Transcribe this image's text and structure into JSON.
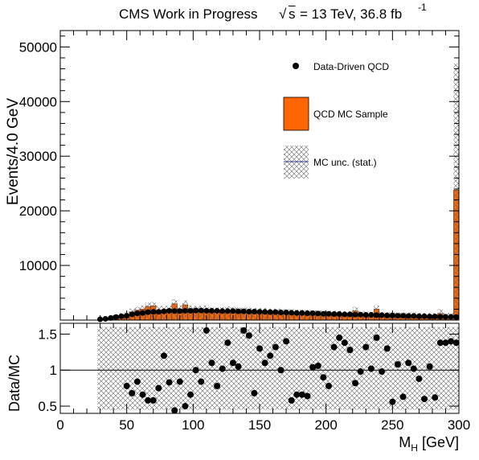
{
  "header": {
    "experiment": "CMS Work in Progress",
    "sqrt_symbol": "√",
    "s_label": "s",
    "energy_lumi": "= 13 TeV, 36.8 fb",
    "lumi_exponent": "-1"
  },
  "chart_data": [
    {
      "type": "bar",
      "panel": "main",
      "ylabel": "Events/4.0 GeV",
      "xlim": [
        0,
        300
      ],
      "ylim": [
        0,
        53000
      ],
      "xticks_label": false,
      "yticks": [
        10000,
        20000,
        30000,
        40000,
        50000
      ],
      "ytick_labels": [
        "10000",
        "20000",
        "30000",
        "40000",
        "50000"
      ],
      "legend": [
        {
          "label": "Data-Driven QCD",
          "marker": "dot"
        },
        {
          "label": "QCD MC Sample",
          "marker": "orange-box"
        },
        {
          "label": "MC unc. (stat.)",
          "marker": "hatched-box"
        }
      ],
      "bin_width": 4,
      "x_bin_centers": [
        2,
        6,
        10,
        14,
        18,
        22,
        26,
        30,
        34,
        38,
        42,
        46,
        50,
        54,
        58,
        62,
        66,
        70,
        74,
        78,
        82,
        86,
        90,
        94,
        98,
        102,
        106,
        110,
        114,
        118,
        122,
        126,
        130,
        134,
        138,
        142,
        146,
        150,
        154,
        158,
        162,
        166,
        170,
        174,
        178,
        182,
        186,
        190,
        194,
        198,
        202,
        206,
        210,
        214,
        218,
        222,
        226,
        230,
        234,
        238,
        242,
        246,
        250,
        254,
        258,
        262,
        266,
        270,
        274,
        278,
        282,
        286,
        290,
        294,
        298
      ],
      "series": [
        {
          "name": "QCD MC Sample",
          "color": "#ff6600",
          "values": [
            0,
            0,
            0,
            0,
            0,
            0,
            0,
            150,
            250,
            400,
            600,
            800,
            1000,
            1500,
            1800,
            2000,
            2500,
            2600,
            1800,
            1900,
            2000,
            3000,
            2000,
            2800,
            2000,
            1800,
            1900,
            2000,
            1700,
            1600,
            1700,
            1800,
            1700,
            1600,
            1600,
            1600,
            1500,
            1500,
            1500,
            1400,
            1400,
            1400,
            1300,
            1300,
            1200,
            1200,
            1200,
            1100,
            1100,
            1100,
            1000,
            1000,
            1000,
            950,
            950,
            1700,
            900,
            900,
            850,
            2000,
            800,
            800,
            750,
            750,
            700,
            700,
            700,
            650,
            650,
            650,
            600,
            1200,
            600,
            600,
            23800
          ]
        },
        {
          "name": "Data-Driven QCD",
          "color": "#000000",
          "values": [
            0,
            0,
            0,
            0,
            0,
            0,
            0,
            140,
            230,
            380,
            560,
            700,
            800,
            1050,
            1230,
            1300,
            1450,
            1500,
            1500,
            1600,
            1700,
            1650,
            1650,
            1700,
            1700,
            1750,
            1750,
            1700,
            1700,
            1700,
            1650,
            1650,
            1650,
            1600,
            1600,
            1550,
            1550,
            1500,
            1500,
            1450,
            1450,
            1400,
            1400,
            1350,
            1300,
            1300,
            1250,
            1250,
            1200,
            1150,
            1150,
            1100,
            1100,
            1050,
            1050,
            1000,
            1000,
            950,
            950,
            900,
            900,
            850,
            850,
            800,
            800,
            750,
            750,
            700,
            700,
            650,
            650,
            600,
            600,
            600,
            550
          ]
        }
      ],
      "mc_unc_upper": [
        0,
        0,
        0,
        0,
        0,
        0,
        0,
        300,
        450,
        700,
        1000,
        1300,
        1500,
        2100,
        2400,
        2700,
        3200,
        3300,
        2600,
        2600,
        2700,
        3800,
        2700,
        3600,
        2700,
        2600,
        2600,
        2700,
        2400,
        2300,
        2400,
        2500,
        2400,
        2300,
        2300,
        2300,
        2200,
        2200,
        2200,
        2100,
        2100,
        2100,
        2000,
        2000,
        1900,
        1900,
        1900,
        1800,
        1800,
        1800,
        1700,
        1700,
        1700,
        1600,
        1600,
        2400,
        1600,
        1600,
        1500,
        2700,
        1500,
        1500,
        1400,
        1400,
        1400,
        1400,
        1400,
        1300,
        1300,
        1300,
        1300,
        2000,
        1300,
        1300,
        47000
      ],
      "xlabel_visible": false
    },
    {
      "type": "scatter",
      "panel": "ratio",
      "ylabel": "Data/MC",
      "xlabel_main": "M",
      "xlabel_sub": "H",
      "xlabel_unit": " [GeV]",
      "xlim": [
        0,
        300
      ],
      "ylim": [
        0.4,
        1.65
      ],
      "reference_line": 1,
      "xticks": [
        0,
        50,
        100,
        150,
        200,
        250,
        300
      ],
      "xtick_labels": [
        "0",
        "50",
        "100",
        "150",
        "200",
        "250",
        "300"
      ],
      "yticks": [
        0.5,
        1,
        1.5
      ],
      "ytick_labels": [
        "0.5",
        "1",
        "1.5"
      ],
      "unc_band_x_start": 28,
      "unc_band_lower": 0.45,
      "unc_band_upper": 1.6,
      "x": [
        50,
        54,
        58,
        62,
        66,
        70,
        74,
        78,
        82,
        86,
        90,
        94,
        98,
        102,
        106,
        110,
        114,
        118,
        122,
        126,
        130,
        134,
        138,
        142,
        146,
        150,
        154,
        158,
        162,
        166,
        170,
        174,
        178,
        182,
        186,
        190,
        194,
        198,
        202,
        206,
        210,
        214,
        218,
        222,
        226,
        230,
        234,
        238,
        242,
        246,
        250,
        254,
        258,
        262,
        266,
        270,
        274,
        278,
        282,
        286,
        290,
        294,
        298
      ],
      "y": [
        0.78,
        0.68,
        0.84,
        0.66,
        0.58,
        0.58,
        0.75,
        1.2,
        0.83,
        0.44,
        0.84,
        0.5,
        0.66,
        1.0,
        0.84,
        1.55,
        1.1,
        0.78,
        1.02,
        1.38,
        1.1,
        1.05,
        1.55,
        1.48,
        0.68,
        1.3,
        1.1,
        1.2,
        1.32,
        1.0,
        1.4,
        0.58,
        0.66,
        0.66,
        0.64,
        1.04,
        1.06,
        0.9,
        0.78,
        1.32,
        1.45,
        1.38,
        1.28,
        0.82,
        0.98,
        1.32,
        1.02,
        1.45,
        0.98,
        1.3,
        0.56,
        1.08,
        0.63,
        1.1,
        1.02,
        0.88,
        0.6,
        1.05,
        0.62,
        1.38,
        1.38,
        1.4,
        1.38
      ]
    }
  ]
}
